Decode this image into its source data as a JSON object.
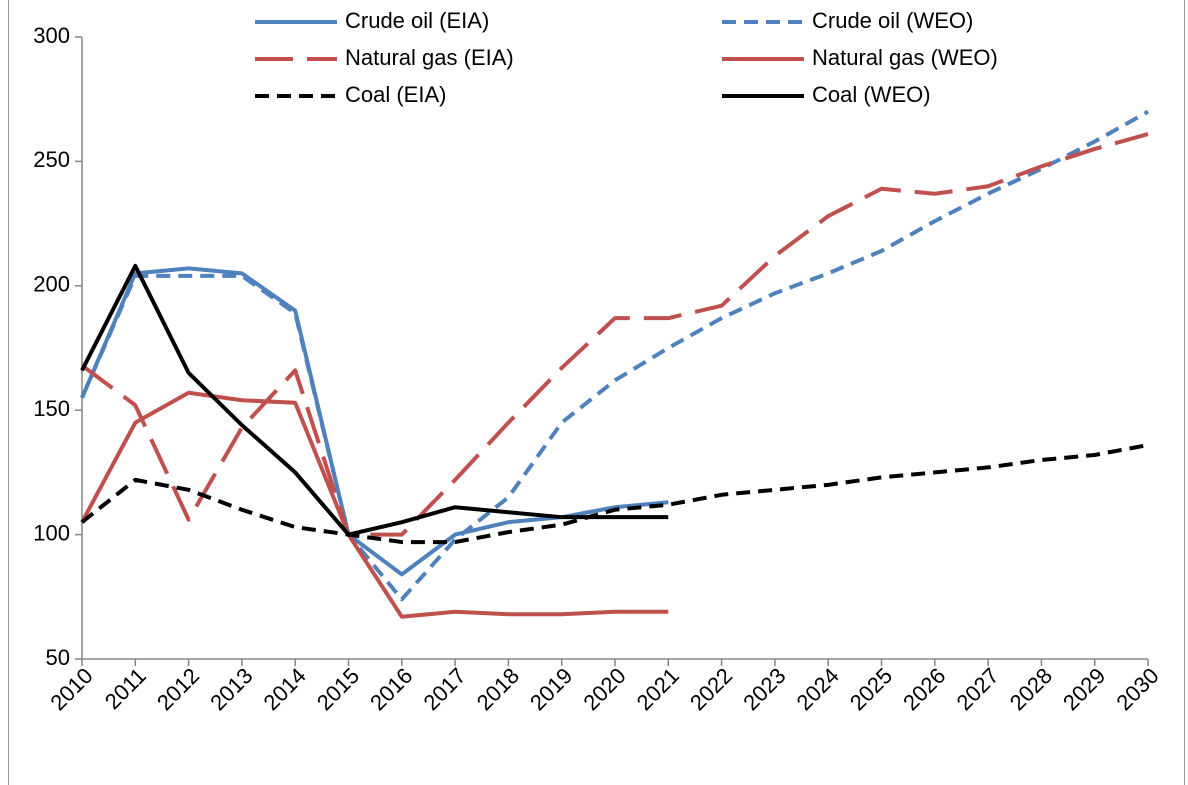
{
  "chart_data": {
    "type": "line",
    "x": [
      2010,
      2011,
      2012,
      2013,
      2014,
      2015,
      2016,
      2017,
      2018,
      2019,
      2020,
      2021,
      2022,
      2023,
      2024,
      2025,
      2026,
      2027,
      2028,
      2029,
      2030
    ],
    "xlim": [
      2010,
      2030
    ],
    "xticks": [
      2010,
      2011,
      2012,
      2013,
      2014,
      2015,
      2016,
      2017,
      2018,
      2019,
      2020,
      2021,
      2022,
      2023,
      2024,
      2025,
      2026,
      2027,
      2028,
      2029,
      2030
    ],
    "ylim": [
      50,
      300
    ],
    "yticks": [
      50,
      100,
      150,
      200,
      250,
      300
    ],
    "legend": "top",
    "series": [
      {
        "name": "Crude oil (EIA)",
        "color": "#4f81bd",
        "dash": "solid",
        "values": [
          155,
          205,
          207,
          205,
          190,
          100,
          84,
          100,
          105,
          107,
          111,
          113,
          null,
          null,
          null,
          null,
          null,
          null,
          null,
          null,
          null
        ]
      },
      {
        "name": "Crude oil (WEO)",
        "color": "#4f81bd",
        "dash": "dashed",
        "values": [
          155,
          204,
          204,
          204,
          189,
          100,
          74,
          98,
          115,
          145,
          162,
          175,
          187,
          197,
          205,
          214,
          226,
          237,
          247,
          258,
          270
        ]
      },
      {
        "name": "Natural gas (EIA)",
        "color": "#c0504d",
        "dash": "longdash",
        "values": [
          168,
          152,
          106,
          143,
          166,
          100,
          100,
          122,
          145,
          167,
          187,
          187,
          192,
          212,
          228,
          239,
          237,
          240,
          248,
          255,
          261
        ]
      },
      {
        "name": "Natural gas (WEO)",
        "color": "#c0504d",
        "dash": "solid",
        "values": [
          105,
          145,
          157,
          154,
          153,
          100,
          67,
          69,
          68,
          68,
          69,
          69,
          null,
          null,
          null,
          null,
          null,
          null,
          null,
          null,
          null
        ]
      },
      {
        "name": "Coal (EIA)",
        "color": "#000000",
        "dash": "dashed",
        "values": [
          105,
          122,
          118,
          110,
          103,
          100,
          97,
          97,
          101,
          104,
          110,
          112,
          116,
          118,
          120,
          123,
          125,
          127,
          130,
          132,
          136
        ]
      },
      {
        "name": "Coal (WEO)",
        "color": "#000000",
        "dash": "solid",
        "values": [
          166,
          208,
          165,
          144,
          125,
          100,
          105,
          111,
          109,
          107,
          107,
          107,
          null,
          null,
          null,
          null,
          null,
          null,
          null,
          null,
          null
        ]
      }
    ]
  }
}
